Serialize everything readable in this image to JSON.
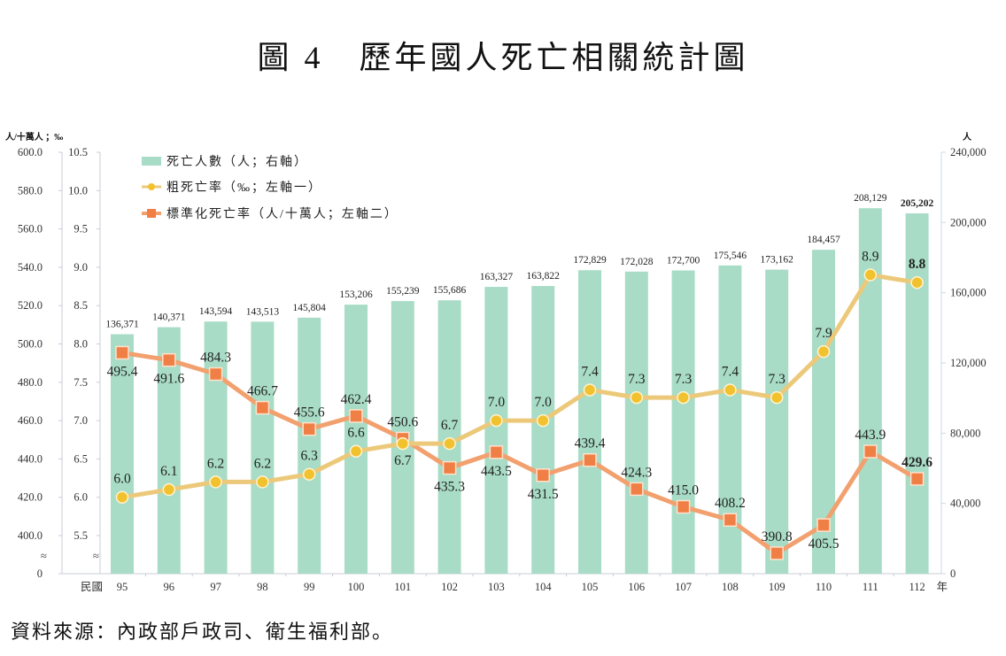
{
  "title": "圖 4　歷年國人死亡相關統計圖",
  "source": "資料來源：內政部戶政司、衛生福利部。",
  "chart_data": {
    "type": "bar+line",
    "title": "歷年國人死亡相關統計圖",
    "xlabel_prefix": "民國",
    "xlabel_suffix": "年",
    "categories": [
      "95",
      "96",
      "97",
      "98",
      "99",
      "100",
      "101",
      "102",
      "103",
      "104",
      "105",
      "106",
      "107",
      "108",
      "109",
      "110",
      "111",
      "112"
    ],
    "axes": {
      "left1": {
        "unit": "人/十萬人 ；‰",
        "ticks": [
          "600.0",
          "580.0",
          "560.0",
          "540.0",
          "520.0",
          "500.0",
          "480.0",
          "460.0",
          "440.0",
          "420.0",
          "400.0",
          "0"
        ],
        "range": [
          400,
          600
        ],
        "break": "≈"
      },
      "left2": {
        "ticks": [
          "10.5",
          "10.0",
          "9.5",
          "9.0",
          "8.5",
          "8.0",
          "7.5",
          "7.0",
          "6.5",
          "6.0",
          "5.5"
        ],
        "range": [
          5.5,
          10.5
        ],
        "break": "≈"
      },
      "right": {
        "unit": "人",
        "ticks": [
          "240,000",
          "200,000",
          "160,000",
          "120,000",
          "80,000",
          "40,000",
          "0"
        ],
        "range": [
          0,
          240000
        ]
      }
    },
    "series": [
      {
        "name": "死亡人數（人；右軸）",
        "type": "bar",
        "axis": "right",
        "color": "#a8dcc6",
        "values": [
          136371,
          140371,
          143594,
          143513,
          145804,
          153206,
          155239,
          155686,
          163327,
          163822,
          172829,
          172028,
          172700,
          175546,
          173162,
          184457,
          208129,
          205202
        ],
        "labels": [
          "136,371",
          "140,371",
          "143,594",
          "143,513",
          "145,804",
          "153,206",
          "155,239",
          "155,686",
          "163,327",
          "163,822",
          "172,829",
          "172,028",
          "172,700",
          "175,546",
          "173,162",
          "184,457",
          "208,129",
          "205,202"
        ]
      },
      {
        "name": "粗死亡率（‰；左軸一）",
        "type": "line",
        "axis": "left2",
        "color": "#f2c12e",
        "line_color": "#ecc97a",
        "marker": "circle",
        "values": [
          6.0,
          6.1,
          6.2,
          6.2,
          6.3,
          6.6,
          6.7,
          6.7,
          7.0,
          7.0,
          7.4,
          7.3,
          7.3,
          7.4,
          7.3,
          7.9,
          8.9,
          8.8
        ],
        "labels": [
          "6.0",
          "6.1",
          "6.2",
          "6.2",
          "6.3",
          "6.6",
          "6.7",
          "6.7",
          "7.0",
          "7.0",
          "7.4",
          "7.3",
          "7.3",
          "7.4",
          "7.3",
          "7.9",
          "8.9",
          "8.8"
        ]
      },
      {
        "name": "標準化死亡率（人/十萬人；左軸二）",
        "type": "line",
        "axis": "left1",
        "color": "#f07f45",
        "line_color": "#f2a06e",
        "marker": "square",
        "values": [
          495.4,
          491.6,
          484.3,
          466.7,
          455.6,
          462.4,
          450.6,
          435.3,
          443.5,
          431.5,
          439.4,
          424.3,
          415.0,
          408.2,
          390.8,
          405.5,
          443.9,
          429.6
        ],
        "labels": [
          "495.4",
          "491.6",
          "484.3",
          "466.7",
          "455.6",
          "462.4",
          "450.6",
          "435.3",
          "443.5",
          "431.5",
          "439.4",
          "424.3",
          "415.0",
          "408.2",
          "390.8",
          "405.5",
          "443.9",
          "429.6"
        ]
      }
    ],
    "legend": [
      "死亡人數（人；右軸）",
      "粗死亡率（‰；左軸一）",
      "標準化死亡率（人/十萬人；左軸二）"
    ],
    "legend_position": "top-left",
    "highlight_last": true
  }
}
